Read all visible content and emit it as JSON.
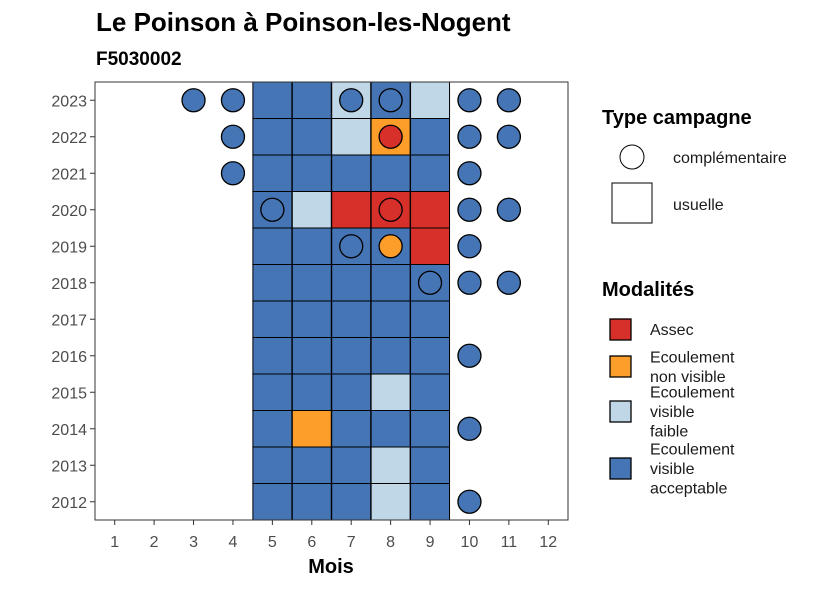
{
  "chart_data": {
    "type": "heatmap",
    "title": "Le Poinson à Poinson-les-Nogent",
    "subtitle": "F5030002",
    "xlabel": "Mois",
    "ylabel": "",
    "x_ticks": [
      "1",
      "2",
      "3",
      "4",
      "5",
      "6",
      "7",
      "8",
      "9",
      "10",
      "11",
      "12"
    ],
    "y_ticks": [
      "2023",
      "2022",
      "2021",
      "2020",
      "2019",
      "2018",
      "2017",
      "2016",
      "2015",
      "2014",
      "2013",
      "2012"
    ],
    "xlim": [
      0.5,
      12.5
    ],
    "ylim": [
      2011.5,
      2023.5
    ],
    "grid": false,
    "legend_position": "right",
    "colors": {
      "Assec": "#d7302a",
      "Ecoulement non visible": "#fd9d2a",
      "Ecoulement visible faible": "#bfd7e7",
      "Ecoulement visible acceptable": "#4575b4"
    },
    "legend_type": {
      "title": "Type campagne",
      "entries": [
        {
          "label": "complémentaire",
          "shape": "circle"
        },
        {
          "label": "usuelle",
          "shape": "square"
        }
      ]
    },
    "legend_modalites": {
      "title": "Modalités",
      "entries": [
        {
          "key": "Assec",
          "lines": [
            "Assec"
          ]
        },
        {
          "key": "Ecoulement non visible",
          "lines": [
            "Ecoulement",
            "non visible"
          ]
        },
        {
          "key": "Ecoulement visible faible",
          "lines": [
            "Ecoulement",
            "visible",
            "faible"
          ]
        },
        {
          "key": "Ecoulement visible acceptable",
          "lines": [
            "Ecoulement",
            "visible",
            "acceptable"
          ]
        }
      ]
    },
    "usuelle": [
      {
        "year": 2023,
        "months": [
          "A",
          "A",
          "F",
          "A",
          "F"
        ]
      },
      {
        "year": 2022,
        "months": [
          "A",
          "A",
          "F",
          "N",
          "A"
        ]
      },
      {
        "year": 2021,
        "months": [
          "A",
          "A",
          "A",
          "A",
          "A"
        ]
      },
      {
        "year": 2020,
        "months": [
          "A",
          "F",
          "S",
          "S",
          "S"
        ]
      },
      {
        "year": 2019,
        "months": [
          "A",
          "A",
          "A",
          "A",
          "S"
        ]
      },
      {
        "year": 2018,
        "months": [
          "A",
          "A",
          "A",
          "A",
          "A"
        ]
      },
      {
        "year": 2017,
        "months": [
          "A",
          "A",
          "A",
          "A",
          "A"
        ]
      },
      {
        "year": 2016,
        "months": [
          "A",
          "A",
          "A",
          "A",
          "A"
        ]
      },
      {
        "year": 2015,
        "months": [
          "A",
          "A",
          "A",
          "F",
          "A"
        ]
      },
      {
        "year": 2014,
        "months": [
          "A",
          "N",
          "A",
          "A",
          "A"
        ]
      },
      {
        "year": 2013,
        "months": [
          "A",
          "A",
          "A",
          "F",
          "A"
        ]
      },
      {
        "year": 2012,
        "months": [
          "A",
          "A",
          "A",
          "F",
          "A"
        ]
      }
    ],
    "usuelle_first_month": 5,
    "modalite_codes": {
      "S": "Assec",
      "N": "Ecoulement non visible",
      "F": "Ecoulement visible faible",
      "A": "Ecoulement visible acceptable"
    },
    "complementaire": [
      {
        "year": 2023,
        "month": 3,
        "modalite": "A"
      },
      {
        "year": 2023,
        "month": 4,
        "modalite": "A"
      },
      {
        "year": 2023,
        "month": 7,
        "modalite": "A"
      },
      {
        "year": 2023,
        "month": 8,
        "modalite": "A"
      },
      {
        "year": 2023,
        "month": 10,
        "modalite": "A"
      },
      {
        "year": 2023,
        "month": 11,
        "modalite": "A"
      },
      {
        "year": 2022,
        "month": 4,
        "modalite": "A"
      },
      {
        "year": 2022,
        "month": 8,
        "modalite": "S"
      },
      {
        "year": 2022,
        "month": 10,
        "modalite": "A"
      },
      {
        "year": 2022,
        "month": 11,
        "modalite": "A"
      },
      {
        "year": 2021,
        "month": 4,
        "modalite": "A"
      },
      {
        "year": 2021,
        "month": 10,
        "modalite": "A"
      },
      {
        "year": 2020,
        "month": 5,
        "modalite": "A"
      },
      {
        "year": 2020,
        "month": 8,
        "modalite": "S"
      },
      {
        "year": 2020,
        "month": 10,
        "modalite": "A"
      },
      {
        "year": 2020,
        "month": 11,
        "modalite": "A"
      },
      {
        "year": 2019,
        "month": 7,
        "modalite": "A"
      },
      {
        "year": 2019,
        "month": 8,
        "modalite": "N"
      },
      {
        "year": 2019,
        "month": 10,
        "modalite": "A"
      },
      {
        "year": 2018,
        "month": 9,
        "modalite": "A"
      },
      {
        "year": 2018,
        "month": 10,
        "modalite": "A"
      },
      {
        "year": 2018,
        "month": 11,
        "modalite": "A"
      },
      {
        "year": 2016,
        "month": 10,
        "modalite": "A"
      },
      {
        "year": 2014,
        "month": 10,
        "modalite": "A"
      },
      {
        "year": 2012,
        "month": 10,
        "modalite": "A"
      }
    ]
  }
}
